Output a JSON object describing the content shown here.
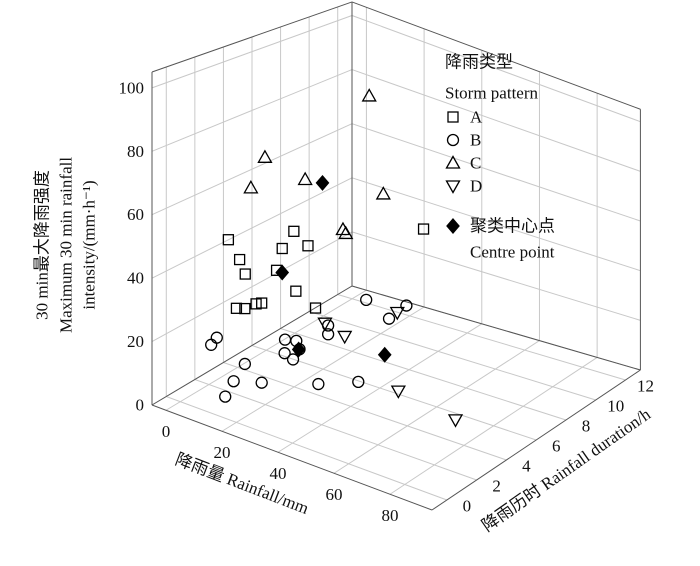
{
  "chart_data": {
    "type": "scatter3d",
    "xlabel": "降雨量 Rainfall/mm",
    "ylabel": "降雨历时 Rainfall duration/h",
    "zlabel": [
      "30 min最大降雨强度",
      "Maximum 30 min rainfall",
      "intensity/(mm·h⁻¹)"
    ],
    "xlim": [
      -5,
      95
    ],
    "ylim": [
      -1,
      13
    ],
    "zlim": [
      0,
      105
    ],
    "xticks": [
      0,
      20,
      40,
      60,
      80
    ],
    "yticks": [
      0,
      2,
      4,
      6,
      8,
      10,
      12
    ],
    "zticks": [
      0,
      20,
      40,
      60,
      80,
      100
    ],
    "grid": true,
    "legend_title": [
      "降雨类型",
      "Storm pattern"
    ],
    "series": [
      {
        "name": "A",
        "marker": "square",
        "color": "#000000",
        "filled": false,
        "x": [
          12,
          16,
          18,
          20,
          23,
          27,
          29,
          24,
          26,
          25,
          30,
          36,
          43,
          40
        ],
        "y": [
          1,
          1,
          1,
          0,
          0,
          0,
          0,
          2,
          2,
          3,
          3,
          1,
          1,
          9
        ],
        "z": [
          54,
          49,
          45,
          37,
          38,
          41,
          42,
          46,
          54,
          57,
          54,
          46,
          43,
          48
        ]
      },
      {
        "name": "B",
        "marker": "circle",
        "color": "#000000",
        "filled": false,
        "x": [
          11,
          13,
          16,
          19,
          23,
          29,
          27,
          31,
          32,
          35,
          27,
          44,
          32,
          32,
          53,
          25,
          33,
          34
        ],
        "y": [
          0,
          0,
          0,
          0,
          0,
          0,
          2,
          2,
          1,
          1,
          3,
          1,
          4,
          4,
          2,
          8,
          8,
          9
        ],
        "z": [
          22,
          25,
          7,
          13,
          20,
          16,
          24,
          25,
          24,
          23,
          18,
          18,
          22,
          25,
          19,
          20,
          16,
          18
        ]
      },
      {
        "name": "C",
        "marker": "triangle-up",
        "color": "#000000",
        "filled": false,
        "x": [
          25,
          20,
          29,
          27,
          28,
          21,
          31
        ],
        "y": [
          1,
          1,
          3,
          6,
          6,
          9,
          8
        ],
        "z": [
          86,
          74,
          76,
          51,
          50,
          89,
          60
        ]
      },
      {
        "name": "D",
        "marker": "triangle-down",
        "color": "#000000",
        "filled": false,
        "x": [
          36,
          43,
          62,
          77,
          41
        ],
        "y": [
          3,
          3,
          3,
          4,
          7
        ],
        "z": [
          30,
          28,
          16,
          8,
          24
        ]
      },
      {
        "name": "聚类中心点",
        "subname": "Centre point",
        "marker": "diamond",
        "color": "#000000",
        "filled": true,
        "x": [
          30,
          26,
          37,
          52
        ],
        "y": [
          4,
          2,
          1,
          4
        ],
        "z": [
          73,
          46,
          27,
          22
        ]
      }
    ]
  }
}
